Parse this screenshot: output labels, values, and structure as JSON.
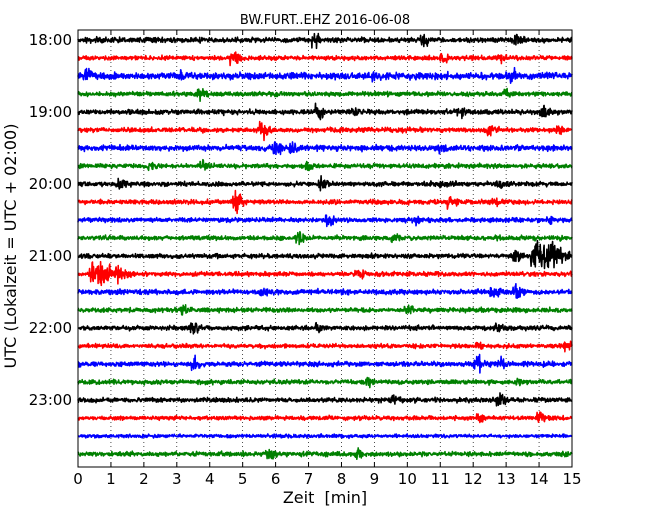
{
  "chart_data": {
    "type": "line",
    "title": "BW.FURT..EHZ 2016-06-08",
    "xlabel": "Zeit  [min]",
    "ylabel": "UTC (Lokalzeit = UTC + 02:00)",
    "xlim": [
      0,
      15
    ],
    "x_ticks": [
      "0",
      "1",
      "2",
      "3",
      "4",
      "5",
      "6",
      "7",
      "8",
      "9",
      "10",
      "11",
      "12",
      "13",
      "14",
      "15"
    ],
    "y_ticks": [
      "18:00",
      "19:00",
      "20:00",
      "21:00",
      "22:00",
      "23:00"
    ],
    "grid": "vertical dotted at every minute",
    "colors": [
      "#000000",
      "#ff0000",
      "#0000ff",
      "#008000"
    ],
    "traces": [
      {
        "start": "18:00",
        "color": "#000000",
        "amplitude": 0.22,
        "events": [
          {
            "t": 7.2,
            "amp": 0.45
          },
          {
            "t": 10.5,
            "amp": 0.5
          },
          {
            "t": 13.3,
            "amp": 0.35
          }
        ]
      },
      {
        "start": "18:15",
        "color": "#ff0000",
        "amplitude": 0.2,
        "events": [
          {
            "t": 4.7,
            "amp": 0.6
          },
          {
            "t": 11.1,
            "amp": 0.3
          },
          {
            "t": 12.8,
            "amp": 0.3
          }
        ]
      },
      {
        "start": "18:30",
        "color": "#0000ff",
        "amplitude": 0.3,
        "events": [
          {
            "t": 0.3,
            "amp": 0.5
          },
          {
            "t": 3.1,
            "amp": 0.35
          },
          {
            "t": 9.0,
            "amp": 0.3
          },
          {
            "t": 13.2,
            "amp": 0.35
          }
        ]
      },
      {
        "start": "18:45",
        "color": "#008000",
        "amplitude": 0.2,
        "events": [
          {
            "t": 3.7,
            "amp": 0.35
          },
          {
            "t": 13.0,
            "amp": 0.3
          }
        ]
      },
      {
        "start": "19:00",
        "color": "#000000",
        "amplitude": 0.22,
        "events": [
          {
            "t": 7.3,
            "amp": 0.55
          },
          {
            "t": 8.4,
            "amp": 0.35
          },
          {
            "t": 11.6,
            "amp": 0.35
          },
          {
            "t": 14.1,
            "amp": 0.4
          }
        ]
      },
      {
        "start": "19:15",
        "color": "#ff0000",
        "amplitude": 0.2,
        "events": [
          {
            "t": 5.6,
            "amp": 0.75
          },
          {
            "t": 12.5,
            "amp": 0.4
          },
          {
            "t": 14.6,
            "amp": 0.3
          }
        ]
      },
      {
        "start": "19:30",
        "color": "#0000ff",
        "amplitude": 0.25,
        "events": [
          {
            "t": 6.0,
            "amp": 0.7
          },
          {
            "t": 6.5,
            "amp": 0.5
          },
          {
            "t": 11.0,
            "amp": 0.3
          }
        ]
      },
      {
        "start": "19:45",
        "color": "#008000",
        "amplitude": 0.2,
        "events": [
          {
            "t": 2.2,
            "amp": 0.3
          },
          {
            "t": 3.8,
            "amp": 0.35
          },
          {
            "t": 7.0,
            "amp": 0.3
          }
        ]
      },
      {
        "start": "20:00",
        "color": "#000000",
        "amplitude": 0.2,
        "events": [
          {
            "t": 1.3,
            "amp": 0.4
          },
          {
            "t": 7.4,
            "amp": 0.45
          },
          {
            "t": 11.0,
            "amp": 0.3
          },
          {
            "t": 12.8,
            "amp": 0.3
          }
        ]
      },
      {
        "start": "20:15",
        "color": "#ff0000",
        "amplitude": 0.2,
        "events": [
          {
            "t": 4.8,
            "amp": 0.65
          },
          {
            "t": 11.3,
            "amp": 0.55
          },
          {
            "t": 12.6,
            "amp": 0.3
          }
        ]
      },
      {
        "start": "20:30",
        "color": "#0000ff",
        "amplitude": 0.2,
        "events": [
          {
            "t": 7.6,
            "amp": 0.6
          },
          {
            "t": 10.3,
            "amp": 0.3
          },
          {
            "t": 14.3,
            "amp": 0.3
          }
        ]
      },
      {
        "start": "20:45",
        "color": "#008000",
        "amplitude": 0.2,
        "events": [
          {
            "t": 6.7,
            "amp": 0.4
          },
          {
            "t": 9.6,
            "amp": 0.3
          }
        ]
      },
      {
        "start": "21:00",
        "color": "#000000",
        "amplitude": 0.2,
        "events": [
          {
            "t": 14.1,
            "amp": 1.4,
            "width": 0.9
          },
          {
            "t": 13.3,
            "amp": 0.5
          }
        ]
      },
      {
        "start": "21:15",
        "color": "#ff0000",
        "amplitude": 0.2,
        "events": [
          {
            "t": 0.7,
            "amp": 1.0,
            "width": 0.9
          },
          {
            "t": 8.5,
            "amp": 0.4
          }
        ]
      },
      {
        "start": "21:30",
        "color": "#0000ff",
        "amplitude": 0.22,
        "events": [
          {
            "t": 5.6,
            "amp": 0.35
          },
          {
            "t": 12.6,
            "amp": 0.6
          },
          {
            "t": 13.3,
            "amp": 0.5
          }
        ]
      },
      {
        "start": "21:45",
        "color": "#008000",
        "amplitude": 0.2,
        "events": [
          {
            "t": 3.2,
            "amp": 0.35
          },
          {
            "t": 10.0,
            "amp": 0.25
          }
        ]
      },
      {
        "start": "22:00",
        "color": "#000000",
        "amplitude": 0.2,
        "events": [
          {
            "t": 3.5,
            "amp": 0.45
          },
          {
            "t": 7.3,
            "amp": 0.35
          },
          {
            "t": 12.7,
            "amp": 0.35
          }
        ]
      },
      {
        "start": "22:15",
        "color": "#ff0000",
        "amplitude": 0.18,
        "events": [
          {
            "t": 12.1,
            "amp": 0.35
          },
          {
            "t": 14.8,
            "amp": 0.35
          }
        ]
      },
      {
        "start": "22:30",
        "color": "#0000ff",
        "amplitude": 0.22,
        "events": [
          {
            "t": 3.5,
            "amp": 0.4
          },
          {
            "t": 12.1,
            "amp": 0.6
          },
          {
            "t": 12.8,
            "amp": 0.4
          }
        ]
      },
      {
        "start": "22:45",
        "color": "#008000",
        "amplitude": 0.2,
        "events": [
          {
            "t": 8.8,
            "amp": 0.35
          },
          {
            "t": 13.4,
            "amp": 0.3
          }
        ]
      },
      {
        "start": "23:00",
        "color": "#000000",
        "amplitude": 0.2,
        "events": [
          {
            "t": 12.8,
            "amp": 0.5
          },
          {
            "t": 9.6,
            "amp": 0.3
          }
        ]
      },
      {
        "start": "23:15",
        "color": "#ff0000",
        "amplitude": 0.18,
        "events": [
          {
            "t": 14.0,
            "amp": 0.5
          },
          {
            "t": 12.2,
            "amp": 0.3
          }
        ]
      },
      {
        "start": "23:30",
        "color": "#0000ff",
        "amplitude": 0.15,
        "events": []
      },
      {
        "start": "23:45",
        "color": "#008000",
        "amplitude": 0.2,
        "events": [
          {
            "t": 5.8,
            "amp": 0.35
          },
          {
            "t": 8.5,
            "amp": 0.35
          }
        ]
      }
    ]
  }
}
